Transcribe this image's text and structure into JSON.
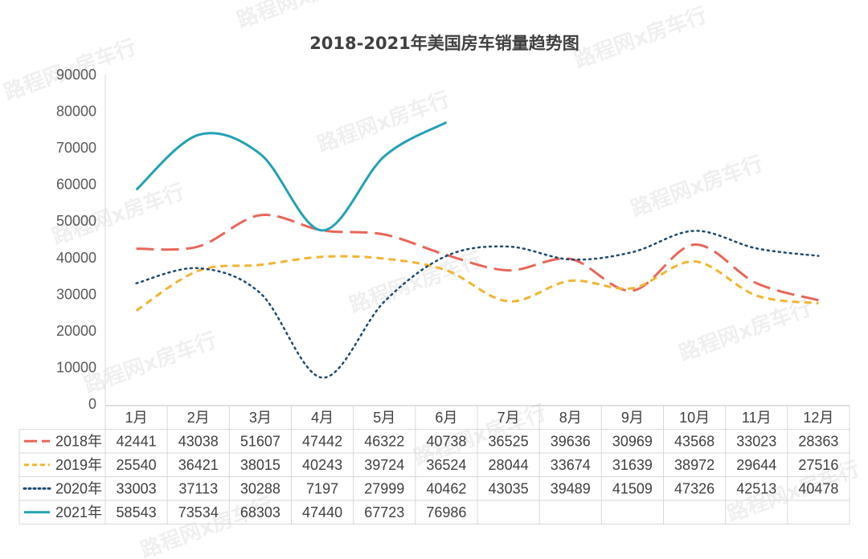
{
  "watermark_text": "路程网x房车行",
  "chart_data": {
    "type": "line",
    "title": "2018-2021年美国房车销量趋势图",
    "categories": [
      "1月",
      "2月",
      "3月",
      "4月",
      "5月",
      "6月",
      "7月",
      "8月",
      "9月",
      "10月",
      "11月",
      "12月"
    ],
    "ylim": [
      0,
      90000
    ],
    "yticks": [
      0,
      10000,
      20000,
      30000,
      40000,
      50000,
      60000,
      70000,
      80000,
      90000
    ],
    "grid": false,
    "legend_placement": "data-table",
    "series": [
      {
        "name": "2018年",
        "color": "#E8665A",
        "dash": "long-dash",
        "values": [
          42441,
          43038,
          51607,
          47442,
          46322,
          40738,
          36525,
          39636,
          30969,
          43568,
          33023,
          28363
        ]
      },
      {
        "name": "2019年",
        "color": "#F2B530",
        "dash": "dash",
        "values": [
          25540,
          36421,
          38015,
          40243,
          39724,
          36524,
          28044,
          33674,
          31639,
          38972,
          29644,
          27516
        ]
      },
      {
        "name": "2020年",
        "color": "#1E4A6E",
        "dash": "dot",
        "values": [
          33003,
          37113,
          30288,
          7197,
          27999,
          40462,
          43035,
          39489,
          41509,
          47326,
          42513,
          40478
        ]
      },
      {
        "name": "2021年",
        "color": "#23A1B5",
        "dash": "solid",
        "values": [
          58543,
          73534,
          68303,
          47440,
          67723,
          76986,
          null,
          null,
          null,
          null,
          null,
          null
        ]
      }
    ]
  }
}
